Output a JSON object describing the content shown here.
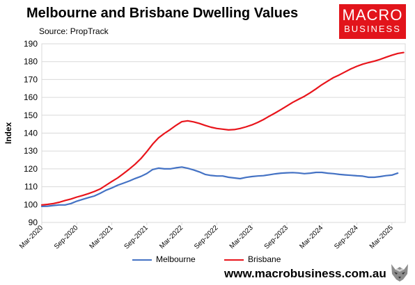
{
  "header": {
    "title": "Melbourne and Brisbane Dwelling Values",
    "subtitle": "Source: PropTrack"
  },
  "logo": {
    "line1": "MACRO",
    "line2": "BUSINESS",
    "color": "#e2141b"
  },
  "footer": {
    "website": "www.macrobusiness.com.au"
  },
  "chart_data": {
    "type": "line",
    "ylabel": "Index",
    "ylim": [
      90,
      190
    ],
    "yticks": [
      90,
      100,
      110,
      120,
      130,
      140,
      150,
      160,
      170,
      180,
      190
    ],
    "xticks": [
      "Mar-2020",
      "Sep-2020",
      "Mar-2021",
      "Sep-2021",
      "Mar-2022",
      "Sep-2022",
      "Mar-2023",
      "Sep-2023",
      "Mar-2024",
      "Sep-2024",
      "Mar-2025"
    ],
    "x_start": "Mar-2020",
    "legend_position": "bottom",
    "series": [
      {
        "name": "Melbourne",
        "color": "#4472c4",
        "values": [
          99.0,
          99.1,
          99.5,
          99.8,
          99.8,
          100.6,
          101.9,
          102.9,
          103.9,
          104.8,
          106.3,
          108.0,
          109.3,
          110.8,
          112.0,
          113.2,
          114.6,
          115.8,
          117.4,
          119.6,
          120.4,
          120.0,
          120.0,
          120.6,
          121.0,
          120.3,
          119.4,
          118.3,
          116.9,
          116.3,
          116.0,
          116.0,
          115.3,
          114.9,
          114.5,
          115.2,
          115.7,
          116.0,
          116.2,
          116.7,
          117.2,
          117.6,
          117.8,
          117.9,
          117.7,
          117.3,
          117.6,
          118.0,
          118.0,
          117.6,
          117.3,
          116.9,
          116.6,
          116.4,
          116.1,
          115.9,
          115.3,
          115.3,
          115.7,
          116.2,
          116.5,
          117.6
        ]
      },
      {
        "name": "Brisbane",
        "color": "#e8141b",
        "values": [
          99.8,
          100.1,
          100.6,
          101.3,
          102.3,
          103.1,
          104.2,
          105.1,
          106.1,
          107.3,
          108.7,
          110.8,
          112.9,
          114.9,
          117.3,
          119.9,
          122.6,
          125.8,
          129.6,
          133.8,
          137.3,
          139.8,
          142.0,
          144.3,
          146.4,
          146.9,
          146.3,
          145.4,
          144.3,
          143.3,
          142.6,
          142.2,
          141.8,
          142.0,
          142.6,
          143.5,
          144.6,
          146.0,
          147.6,
          149.5,
          151.3,
          153.2,
          155.2,
          157.2,
          158.9,
          160.6,
          162.6,
          164.8,
          167.1,
          169.1,
          171.1,
          172.6,
          174.3,
          176.0,
          177.4,
          178.6,
          179.5,
          180.3,
          181.3,
          182.5,
          183.6,
          184.6,
          185.1
        ]
      }
    ]
  }
}
